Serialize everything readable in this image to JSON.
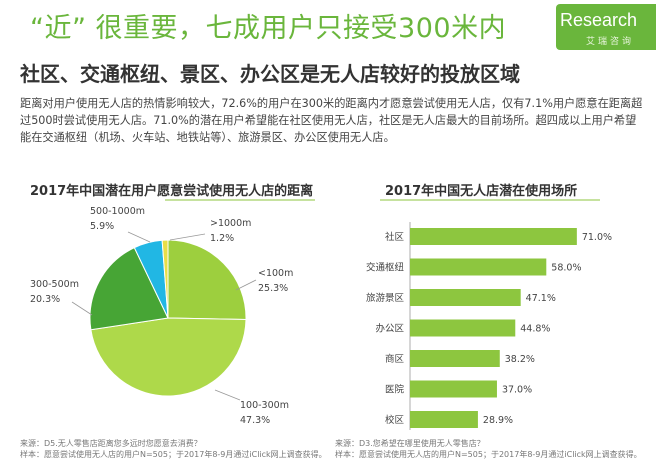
{
  "header": {
    "headline": "“近” 很重要，七成用户只接受300米内",
    "logo_text": "Research",
    "logo_sub": "艾瑞咨询",
    "subtitle": "社区、交通枢纽、景区、办公区是无人店较好的投放区域",
    "description": "距离对用户使用无人店的热情影响较大，72.6%的用户在300米的距离内才愿意尝试使用无人店，仅有7.1%用户愿意在距离超过500时尝试使用无人店。71.0%的潜在用户希望能在社区使用无人店，社区是无人店最大的目前场所。超四成以上用户希望能在交通枢纽（机场、火车站、地铁站等）、旅游景区、办公区使用无人店。"
  },
  "colors": {
    "accent": "#6ab63c",
    "pie_lt100": "#9dcf3e",
    "pie_100_300": "#aed94a",
    "pie_300_500": "#47a535",
    "pie_500_1000": "#21b7e4",
    "pie_gt1000": "#e7de48",
    "bar": "#8dc63f"
  },
  "chart_data": [
    {
      "type": "pie",
      "title": "2017年中国潜在用户愿意尝试使用无人店的距离",
      "slices": [
        {
          "label": "<100m",
          "value": 25.3,
          "value_label": "25.3%"
        },
        {
          "label": "100-300m",
          "value": 47.3,
          "value_label": "47.3%"
        },
        {
          "label": "300-500m",
          "value": 20.3,
          "value_label": "20.3%"
        },
        {
          "label": "500-1000m",
          "value": 5.9,
          "value_label": "5.9%"
        },
        {
          "label": ">1000m",
          "value": 1.2,
          "value_label": "1.2%"
        }
      ],
      "note_source": "来源：D5.无人零售店距离您多远时您愿意去消费？",
      "note_sample": "样本：愿意尝试使用无人店的用户N=505；于2017年8-9月通过iClick网上调查获得。"
    },
    {
      "type": "bar",
      "orientation": "horizontal",
      "title": "2017年中国无人店潜在使用场所",
      "categories": [
        "社区",
        "交通枢纽",
        "旅游景区",
        "办公区",
        "商区",
        "医院",
        "校区"
      ],
      "values": [
        71.0,
        58.0,
        47.1,
        44.8,
        38.2,
        37.0,
        28.9
      ],
      "value_labels": [
        "71.0%",
        "58.0%",
        "47.1%",
        "44.8%",
        "38.2%",
        "37.0%",
        "28.9%"
      ],
      "xlim": [
        0,
        80
      ],
      "grid": false,
      "note_source": "来源：D3.您希望在哪里使用无人零售店？",
      "note_sample": "样本：愿意尝试使用无人店的用户N=505；于2017年8-9月通过iClick网上调查获得。"
    }
  ]
}
